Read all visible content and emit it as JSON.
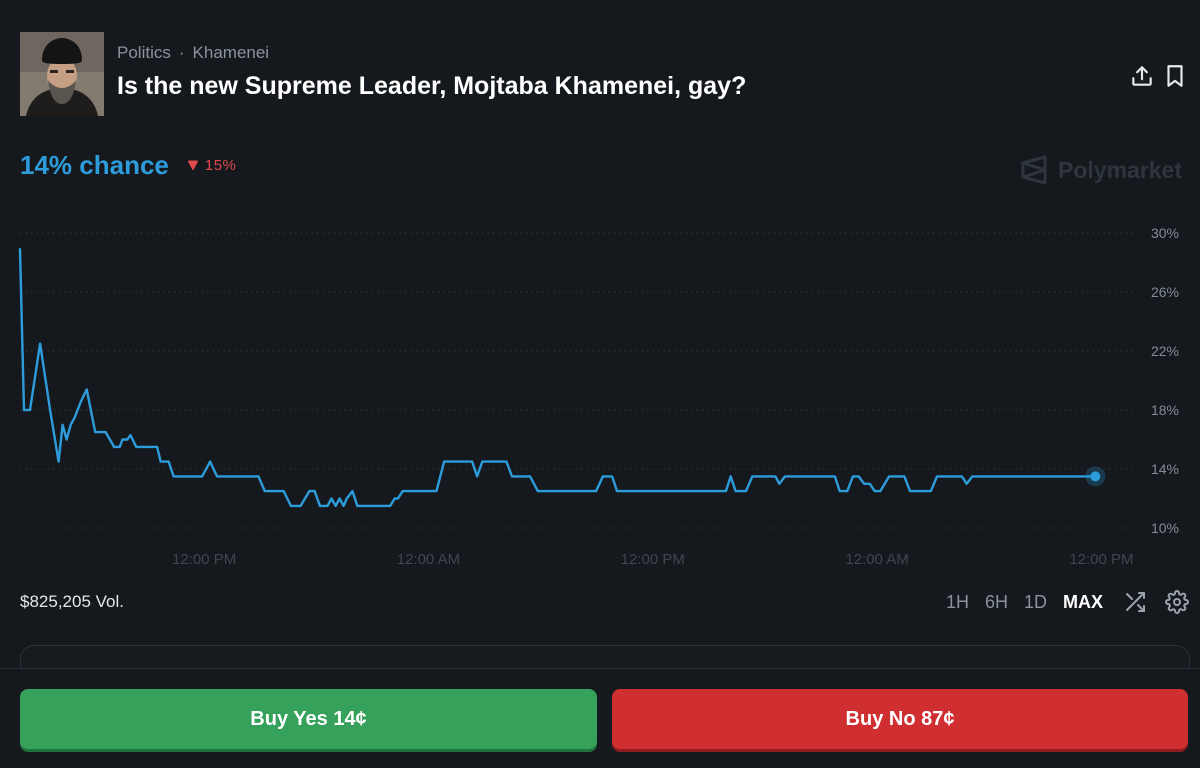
{
  "header": {
    "breadcrumb": [
      "Politics",
      "Khamenei"
    ],
    "breadcrumb_separator": "·",
    "title": "Is the new Supreme Leader, Mojtaba Khamenei, gay?"
  },
  "odds": {
    "chance_text": "14% chance",
    "change_text": "15%",
    "change_direction": "down"
  },
  "brand": {
    "name": "Polymarket",
    "icon": "polymarket-logo-icon"
  },
  "colors": {
    "accent": "#2d9cdb",
    "negative": "#e0484b",
    "yes_button": "#36a15b",
    "no_button": "#cf2f31",
    "background": "#15191e"
  },
  "chart_data": {
    "type": "line",
    "title": "",
    "xlabel": "",
    "ylabel": "",
    "x_tick_labels": [
      "12:00 PM",
      "12:00 AM",
      "12:00 PM",
      "12:00 AM",
      "12:00 PM"
    ],
    "y_tick_labels": [
      "30%",
      "26%",
      "22%",
      "18%",
      "14%",
      "10%"
    ],
    "y_ticks": [
      30,
      26,
      22,
      18,
      14,
      10
    ],
    "ylim": [
      10,
      30
    ],
    "grid": "horizontal dotted",
    "legend": "none",
    "x_unit": "hours since start",
    "series": [
      {
        "color": "#2d9cdb",
        "points": [
          [
            0.0,
            28.9
          ],
          [
            1.0,
            18.0
          ],
          [
            2.5,
            18.0
          ],
          [
            5.0,
            22.5
          ],
          [
            7.5,
            18.0
          ],
          [
            9.6,
            14.5
          ],
          [
            10.6,
            17.0
          ],
          [
            11.6,
            16.0
          ],
          [
            12.6,
            17.0
          ],
          [
            13.6,
            17.5
          ],
          [
            15.2,
            18.6
          ],
          [
            16.6,
            19.4
          ],
          [
            18.7,
            16.5
          ],
          [
            21.3,
            16.5
          ],
          [
            23.4,
            15.5
          ],
          [
            24.8,
            15.5
          ],
          [
            25.5,
            16.0
          ],
          [
            26.7,
            16.0
          ],
          [
            27.5,
            16.3
          ],
          [
            28.9,
            15.5
          ],
          [
            34.1,
            15.5
          ],
          [
            35.0,
            14.5
          ],
          [
            37.0,
            14.5
          ],
          [
            38.2,
            13.5
          ],
          [
            45.3,
            13.5
          ],
          [
            47.3,
            14.5
          ],
          [
            49.0,
            13.5
          ],
          [
            59.3,
            13.5
          ],
          [
            60.9,
            12.5
          ],
          [
            65.6,
            12.5
          ],
          [
            67.4,
            11.5
          ],
          [
            69.8,
            11.5
          ],
          [
            72.0,
            12.5
          ],
          [
            73.3,
            12.5
          ],
          [
            74.6,
            11.5
          ],
          [
            76.5,
            11.5
          ],
          [
            77.5,
            12.0
          ],
          [
            78.5,
            11.5
          ],
          [
            79.5,
            12.0
          ],
          [
            80.5,
            11.5
          ],
          [
            81.3,
            12.0
          ],
          [
            82.7,
            12.5
          ],
          [
            83.9,
            11.5
          ],
          [
            92.1,
            11.5
          ],
          [
            93.2,
            12.0
          ],
          [
            94.0,
            12.0
          ],
          [
            95.2,
            12.5
          ],
          [
            103.6,
            12.5
          ],
          [
            105.5,
            14.5
          ],
          [
            112.5,
            14.5
          ],
          [
            113.7,
            13.5
          ],
          [
            115.0,
            14.5
          ],
          [
            121.0,
            14.5
          ],
          [
            122.4,
            13.5
          ],
          [
            126.9,
            13.5
          ],
          [
            128.8,
            12.5
          ],
          [
            143.3,
            12.5
          ],
          [
            145.0,
            13.5
          ],
          [
            147.3,
            13.5
          ],
          [
            148.5,
            12.5
          ],
          [
            175.6,
            12.5
          ],
          [
            176.8,
            13.5
          ],
          [
            178.0,
            12.5
          ],
          [
            180.6,
            12.5
          ],
          [
            182.2,
            13.5
          ],
          [
            187.9,
            13.5
          ],
          [
            188.9,
            13.0
          ],
          [
            190.3,
            13.5
          ],
          [
            202.7,
            13.5
          ],
          [
            203.9,
            12.5
          ],
          [
            205.8,
            12.5
          ],
          [
            207.2,
            13.5
          ],
          [
            208.6,
            13.5
          ],
          [
            210.0,
            13.0
          ],
          [
            211.4,
            13.0
          ],
          [
            212.6,
            12.5
          ],
          [
            214.0,
            12.5
          ],
          [
            216.2,
            13.5
          ],
          [
            220.0,
            13.5
          ],
          [
            221.4,
            12.5
          ],
          [
            226.6,
            12.5
          ],
          [
            228.1,
            13.5
          ],
          [
            234.3,
            13.5
          ],
          [
            235.5,
            13.0
          ],
          [
            236.9,
            13.5
          ],
          [
            267.5,
            13.5
          ]
        ]
      }
    ],
    "x_tick_positions": [
      45.8,
      101.6,
      157.4,
      213.2,
      269.0
    ]
  },
  "footer": {
    "volume": "$825,205 Vol.",
    "ranges": [
      "1H",
      "6H",
      "1D",
      "MAX"
    ],
    "active_range": "MAX"
  },
  "actions": {
    "yes_label": "Buy Yes 14¢",
    "no_label": "Buy No 87¢"
  }
}
